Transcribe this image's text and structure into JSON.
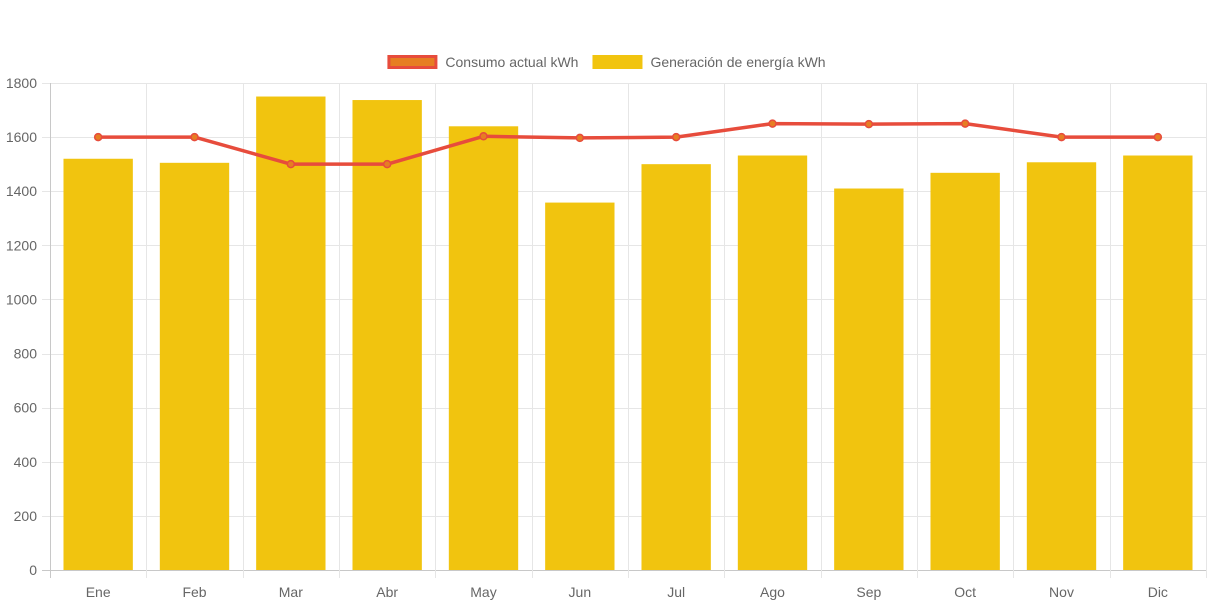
{
  "chart_data": {
    "type": "bar",
    "categories": [
      "Ene",
      "Feb",
      "Mar",
      "Abr",
      "May",
      "Jun",
      "Jul",
      "Ago",
      "Sep",
      "Oct",
      "Nov",
      "Dic"
    ],
    "series": [
      {
        "name": "Generación de energía kWh",
        "type": "bar",
        "color": "#f1c40f",
        "values": [
          1520,
          1505,
          1750,
          1737,
          1640,
          1358,
          1500,
          1532,
          1410,
          1468,
          1507,
          1532
        ]
      },
      {
        "name": "Consumo actual kWh",
        "type": "line",
        "color": "#e74c3c",
        "point_fill": "#e67e22",
        "values": [
          1600,
          1600,
          1500,
          1500,
          1603,
          1597,
          1600,
          1650,
          1648,
          1650,
          1600,
          1600
        ]
      }
    ],
    "ylim": [
      0,
      1800
    ],
    "yticks": [
      0,
      200,
      400,
      600,
      800,
      1000,
      1200,
      1400,
      1600,
      1800
    ],
    "grid": true,
    "legend_position": "top-center",
    "legend_order": [
      "Consumo actual kWh",
      "Generación de energía kWh"
    ]
  }
}
